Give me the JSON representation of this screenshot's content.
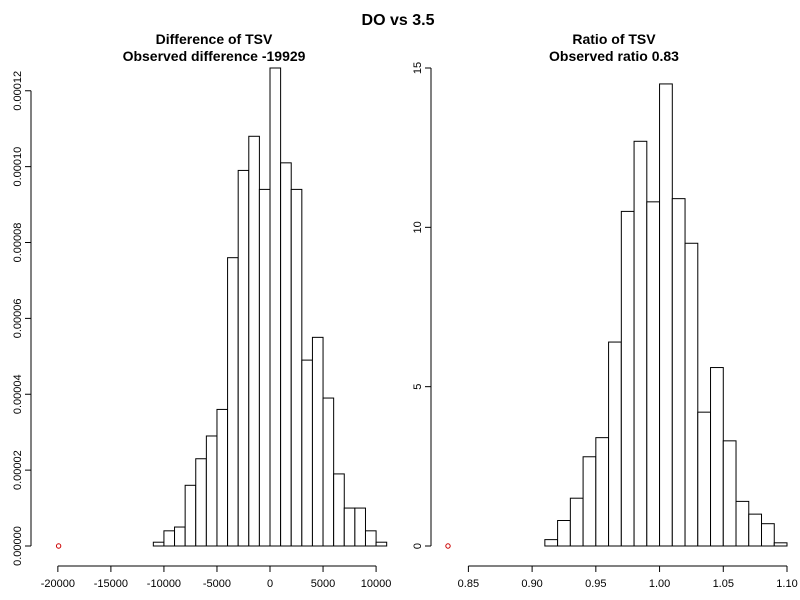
{
  "main_title": "DO vs 3.5",
  "chart_data": [
    {
      "type": "bar",
      "title": "Difference of TSV",
      "subtitle": "Observed difference -19929",
      "xlabel": "",
      "ylabel": "",
      "xlim": [
        -20929,
        11029
      ],
      "ylim": [
        0,
        0.000126
      ],
      "x_ticks": [
        -20000,
        -15000,
        -10000,
        -5000,
        0,
        5000,
        10000
      ],
      "x_tick_labels": [
        "-20000",
        "-15000",
        "-10000",
        "-5000",
        "0",
        "5000",
        "10000"
      ],
      "y_ticks": [
        0,
        2e-05,
        4e-05,
        6e-05,
        8e-05,
        0.0001,
        0.00012
      ],
      "y_tick_labels": [
        "0.00000",
        "0.00002",
        "0.00004",
        "0.00006",
        "0.00008",
        "0.00010",
        "0.00012"
      ],
      "bin_edges": [
        -11000,
        -10000,
        -9000,
        -8000,
        -7000,
        -6000,
        -5000,
        -4000,
        -3000,
        -2000,
        -1000,
        0,
        1000,
        2000,
        3000,
        4000,
        5000,
        6000,
        7000,
        8000,
        9000,
        10000,
        11000
      ],
      "values": [
        1e-06,
        4e-06,
        5e-06,
        1.6e-05,
        2.3e-05,
        2.9e-05,
        3.6e-05,
        7.6e-05,
        9.9e-05,
        0.000108,
        9.4e-05,
        0.000126,
        0.000101,
        9.4e-05,
        4.9e-05,
        5.5e-05,
        3.9e-05,
        1.9e-05,
        1e-05,
        1e-05,
        4e-06,
        1e-06
      ],
      "observed": {
        "x": -19929,
        "y": 0,
        "color": "#cc0000"
      }
    },
    {
      "type": "bar",
      "title": "Ratio of TSV",
      "subtitle": "Observed ratio 0.83",
      "xlabel": "",
      "ylabel": "",
      "xlim": [
        0.834,
        1.1
      ],
      "ylim": [
        0,
        15
      ],
      "x_ticks": [
        0.85,
        0.9,
        0.95,
        1.0,
        1.05,
        1.1
      ],
      "x_tick_labels": [
        "0.85",
        "0.90",
        "0.95",
        "1.00",
        "1.05",
        "1.10"
      ],
      "y_ticks": [
        0,
        5,
        10,
        15
      ],
      "y_tick_labels": [
        "0",
        "5",
        "10",
        "15"
      ],
      "bin_edges": [
        0.91,
        0.92,
        0.93,
        0.94,
        0.95,
        0.96,
        0.97,
        0.98,
        0.99,
        1.0,
        1.01,
        1.02,
        1.03,
        1.04,
        1.05,
        1.06,
        1.07,
        1.08,
        1.09,
        1.1
      ],
      "values": [
        0.2,
        0.8,
        1.5,
        2.8,
        3.4,
        6.4,
        10.5,
        12.7,
        10.8,
        14.5,
        10.9,
        9.5,
        4.2,
        5.6,
        3.3,
        1.4,
        1.0,
        0.7,
        0.1
      ],
      "observed": {
        "x": 0.834,
        "y": 0,
        "color": "#cc0000"
      }
    }
  ]
}
